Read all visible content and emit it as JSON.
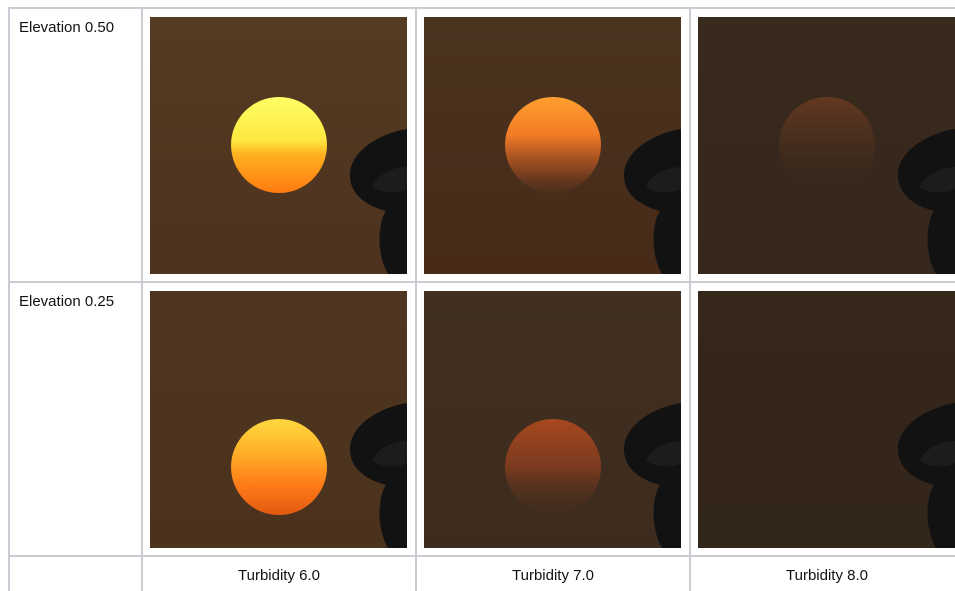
{
  "table": {
    "row_labels": [
      "Elevation 0.50",
      "Elevation 0.25"
    ],
    "column_labels": [
      "Turbidity 6.0",
      "Turbidity 7.0",
      "Turbidity 8.0"
    ]
  }
}
